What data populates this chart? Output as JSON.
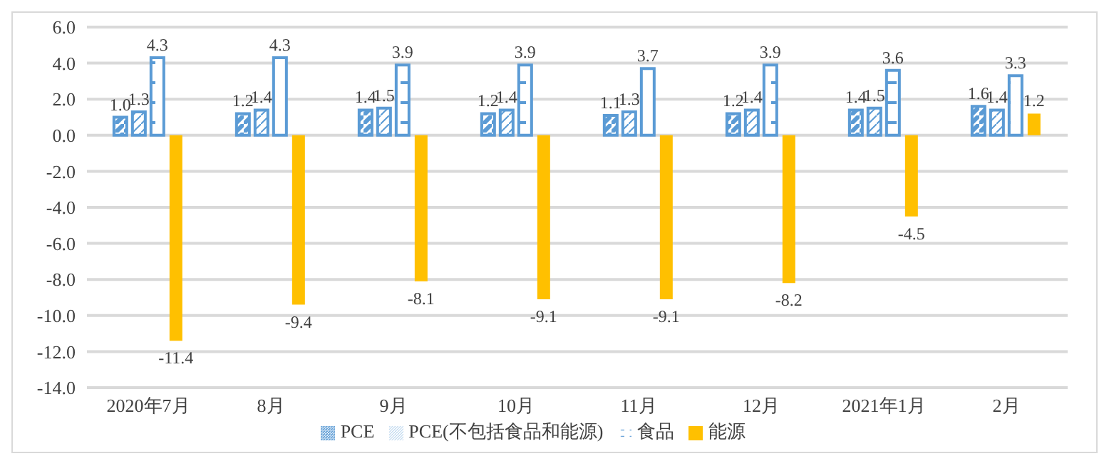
{
  "chart_data": {
    "type": "bar",
    "categories": [
      "2020年7月",
      "8月",
      "9月",
      "10月",
      "11月",
      "12月",
      "2021年1月",
      "2月"
    ],
    "series": [
      {
        "name": "PCE",
        "color": "#5b9bd5",
        "values": [
          1.0,
          1.2,
          1.4,
          1.2,
          1.1,
          1.2,
          1.4,
          1.6
        ],
        "value_labels": [
          "1.0",
          "1.2",
          "1.4",
          "1.2",
          "1.1",
          "1.2",
          "1.4",
          "1.6"
        ]
      },
      {
        "name": "PCE(不包括食品和能源)",
        "color": "#5b9bd5",
        "values": [
          1.3,
          1.4,
          1.5,
          1.4,
          1.3,
          1.4,
          1.5,
          1.4
        ],
        "value_labels": [
          "1.3",
          "1.4",
          "1.5",
          "1.4",
          "1.3",
          "1.4",
          "1.5",
          "1.4"
        ]
      },
      {
        "name": "食品",
        "color": "#5b9bd5",
        "values": [
          4.3,
          4.3,
          3.9,
          3.9,
          3.7,
          3.9,
          3.6,
          3.3
        ],
        "value_labels": [
          "4.3",
          "4.3",
          "3.9",
          "3.9",
          "3.7",
          "3.9",
          "3.6",
          "3.3"
        ]
      },
      {
        "name": "能源",
        "color": "#ffc000",
        "values": [
          -11.4,
          -9.4,
          -8.1,
          -9.1,
          -9.1,
          -8.2,
          -4.5,
          1.2
        ],
        "value_labels": [
          "-11.4",
          "-9.4",
          "-8.1",
          "-9.1",
          "-9.1",
          "-8.2",
          "-4.5",
          "1.2"
        ]
      }
    ],
    "ylim": [
      -14,
      6
    ],
    "yticks": [
      {
        "value": -14,
        "label": "-14.0"
      },
      {
        "value": -12,
        "label": "-12.0"
      },
      {
        "value": -10,
        "label": "-10.0"
      },
      {
        "value": -8,
        "label": "-8.0"
      },
      {
        "value": -6,
        "label": "-6.0"
      },
      {
        "value": -4,
        "label": "-4.0"
      },
      {
        "value": -2,
        "label": "-2.0"
      },
      {
        "value": 0,
        "label": "0.0"
      },
      {
        "value": 2,
        "label": "2.0"
      },
      {
        "value": 4,
        "label": "4.0"
      },
      {
        "value": 6,
        "label": "6.0"
      }
    ],
    "grid": "y",
    "legend": "bottom"
  }
}
